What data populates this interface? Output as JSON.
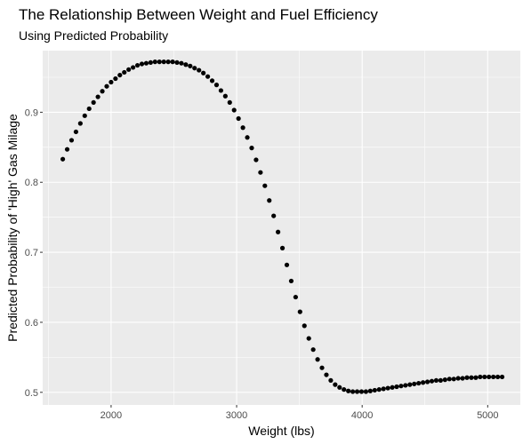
{
  "chart_data": {
    "type": "scatter",
    "title": "The Relationship Between Weight and Fuel Efficiency",
    "subtitle": "Using Predicted Probability",
    "xlabel": "Weight (lbs)",
    "ylabel": "Predicted Probability of 'High' Gas Milage",
    "xlim": [
      1455,
      5260
    ],
    "ylim": [
      0.482,
      0.988
    ],
    "x_ticks": [
      2000,
      3000,
      4000,
      5000
    ],
    "x_tick_labels": [
      "2000",
      "3000",
      "4000",
      "5000"
    ],
    "y_ticks": [
      0.5,
      0.6,
      0.7,
      0.8,
      0.9
    ],
    "y_tick_labels": [
      "0.5",
      "0.6",
      "0.7",
      "0.8",
      "0.9"
    ],
    "grid": true,
    "legend": "none",
    "background_color": "#ebebeb",
    "gridline_color": "#ffffff",
    "point_color": "#000000",
    "x": [
      1615,
      1650,
      1685,
      1720,
      1755,
      1790,
      1825,
      1860,
      1895,
      1930,
      1965,
      2000,
      2035,
      2070,
      2105,
      2140,
      2175,
      2210,
      2245,
      2280,
      2315,
      2350,
      2385,
      2420,
      2455,
      2490,
      2525,
      2560,
      2595,
      2630,
      2665,
      2700,
      2735,
      2770,
      2805,
      2840,
      2875,
      2910,
      2945,
      2980,
      3015,
      3050,
      3085,
      3120,
      3155,
      3190,
      3225,
      3260,
      3295,
      3330,
      3365,
      3400,
      3435,
      3470,
      3505,
      3540,
      3575,
      3610,
      3645,
      3680,
      3715,
      3750,
      3785,
      3820,
      3855,
      3890,
      3925,
      3960,
      3995,
      4030,
      4065,
      4100,
      4135,
      4170,
      4205,
      4240,
      4275,
      4310,
      4345,
      4380,
      4415,
      4450,
      4485,
      4520,
      4555,
      4590,
      4625,
      4660,
      4695,
      4730,
      4765,
      4800,
      4835,
      4870,
      4905,
      4940,
      4975,
      5010,
      5045,
      5080,
      5115
    ],
    "y": [
      0.833,
      0.847,
      0.86,
      0.872,
      0.884,
      0.895,
      0.905,
      0.914,
      0.922,
      0.93,
      0.937,
      0.943,
      0.948,
      0.953,
      0.957,
      0.961,
      0.964,
      0.967,
      0.969,
      0.97,
      0.971,
      0.972,
      0.972,
      0.972,
      0.972,
      0.972,
      0.971,
      0.97,
      0.968,
      0.966,
      0.963,
      0.96,
      0.956,
      0.951,
      0.945,
      0.939,
      0.931,
      0.923,
      0.914,
      0.903,
      0.891,
      0.878,
      0.864,
      0.849,
      0.832,
      0.814,
      0.795,
      0.774,
      0.752,
      0.729,
      0.706,
      0.682,
      0.659,
      0.636,
      0.615,
      0.595,
      0.577,
      0.561,
      0.547,
      0.535,
      0.525,
      0.517,
      0.511,
      0.507,
      0.504,
      0.502,
      0.501,
      0.501,
      0.501,
      0.501,
      0.502,
      0.503,
      0.504,
      0.505,
      0.506,
      0.507,
      0.508,
      0.509,
      0.51,
      0.511,
      0.512,
      0.513,
      0.514,
      0.515,
      0.516,
      0.517,
      0.517,
      0.518,
      0.519,
      0.519,
      0.52,
      0.52,
      0.521,
      0.521,
      0.521,
      0.522,
      0.522,
      0.522,
      0.522,
      0.522,
      0.522
    ]
  }
}
